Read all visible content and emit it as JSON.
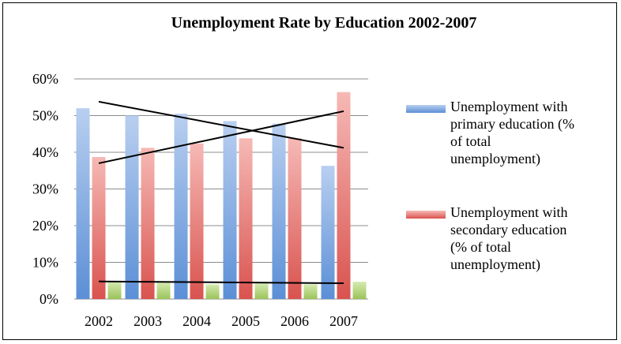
{
  "chart_data": {
    "type": "bar",
    "title": "Unemployment Rate by Education 2002-2007",
    "categories": [
      "2002",
      "2003",
      "2004",
      "2005",
      "2006",
      "2007"
    ],
    "ylim": [
      0,
      0.6
    ],
    "yticks": [
      0,
      0.1,
      0.2,
      0.3,
      0.4,
      0.5,
      0.6
    ],
    "ytick_labels": [
      "0%",
      "10%",
      "20%",
      "30%",
      "40%",
      "50%",
      "60%"
    ],
    "grid": true,
    "legend_position": "right",
    "series": [
      {
        "name": "Unemployment with primary education (% of total unemployment)",
        "legend_lines": [
          "Unemployment with",
          "primary education (%",
          "of total",
          "unemployment)"
        ],
        "color": "#5B8FD6",
        "color_light": "#B9CFF0",
        "values": [
          0.52,
          0.5,
          0.505,
          0.485,
          0.478,
          0.363
        ],
        "trendline": [
          0.538,
          0.412
        ]
      },
      {
        "name": "Unemployment with secondary education (% of total unemployment)",
        "legend_lines": [
          "Unemployment with",
          "secondary education",
          "(% of total",
          "unemployment)"
        ],
        "color": "#D9534F",
        "color_light": "#F6B9B5",
        "values": [
          0.387,
          0.412,
          0.424,
          0.438,
          0.438,
          0.564
        ],
        "trendline": [
          0.37,
          0.512
        ]
      },
      {
        "name": "",
        "legend_lines": [],
        "color": "#9BC35A",
        "color_light": "#D4EAB0",
        "values": [
          0.048,
          0.045,
          0.04,
          0.042,
          0.04,
          0.047
        ],
        "trendline": [
          0.048,
          0.043
        ]
      }
    ]
  }
}
